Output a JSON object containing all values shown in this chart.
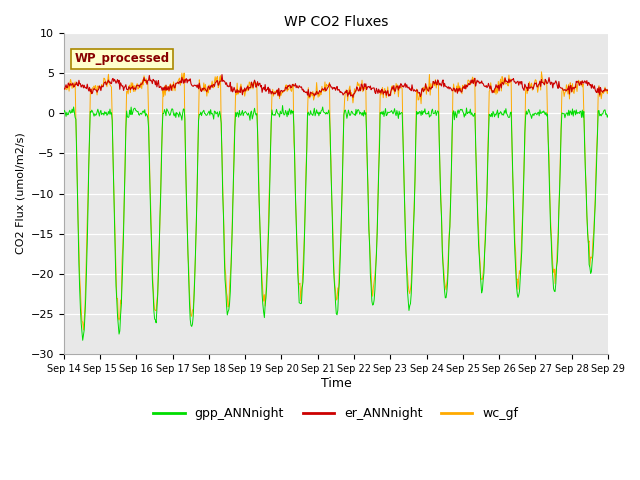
{
  "title": "WP CO2 Fluxes",
  "xlabel": "Time",
  "ylabel": "CO2 Flux (umol/m2/s)",
  "ylim": [
    -30,
    10
  ],
  "yticks": [
    -30,
    -25,
    -20,
    -15,
    -10,
    -5,
    0,
    5,
    10
  ],
  "xtick_labels": [
    "Sep 14",
    "Sep 15",
    "Sep 16",
    "Sep 17",
    "Sep 18",
    "Sep 19",
    "Sep 20",
    "Sep 21",
    "Sep 22",
    "Sep 23",
    "Sep 24",
    "Sep 25",
    "Sep 26",
    "Sep 27",
    "Sep 28",
    "Sep 29"
  ],
  "color_gpp": "#00dd00",
  "color_er": "#cc0000",
  "color_wc": "#ffaa00",
  "legend_label_gpp": "gpp_ANNnight",
  "legend_label_er": "er_ANNnight",
  "legend_label_wc": "wc_gf",
  "annotation_text": "WP_processed",
  "annotation_color": "#880000",
  "annotation_bg": "#ffffcc",
  "annotation_border": "#aa8800",
  "background_color": "#e8e8e8",
  "n_days": 15,
  "points_per_day": 48,
  "figsize": [
    6.4,
    4.8
  ],
  "dpi": 100
}
